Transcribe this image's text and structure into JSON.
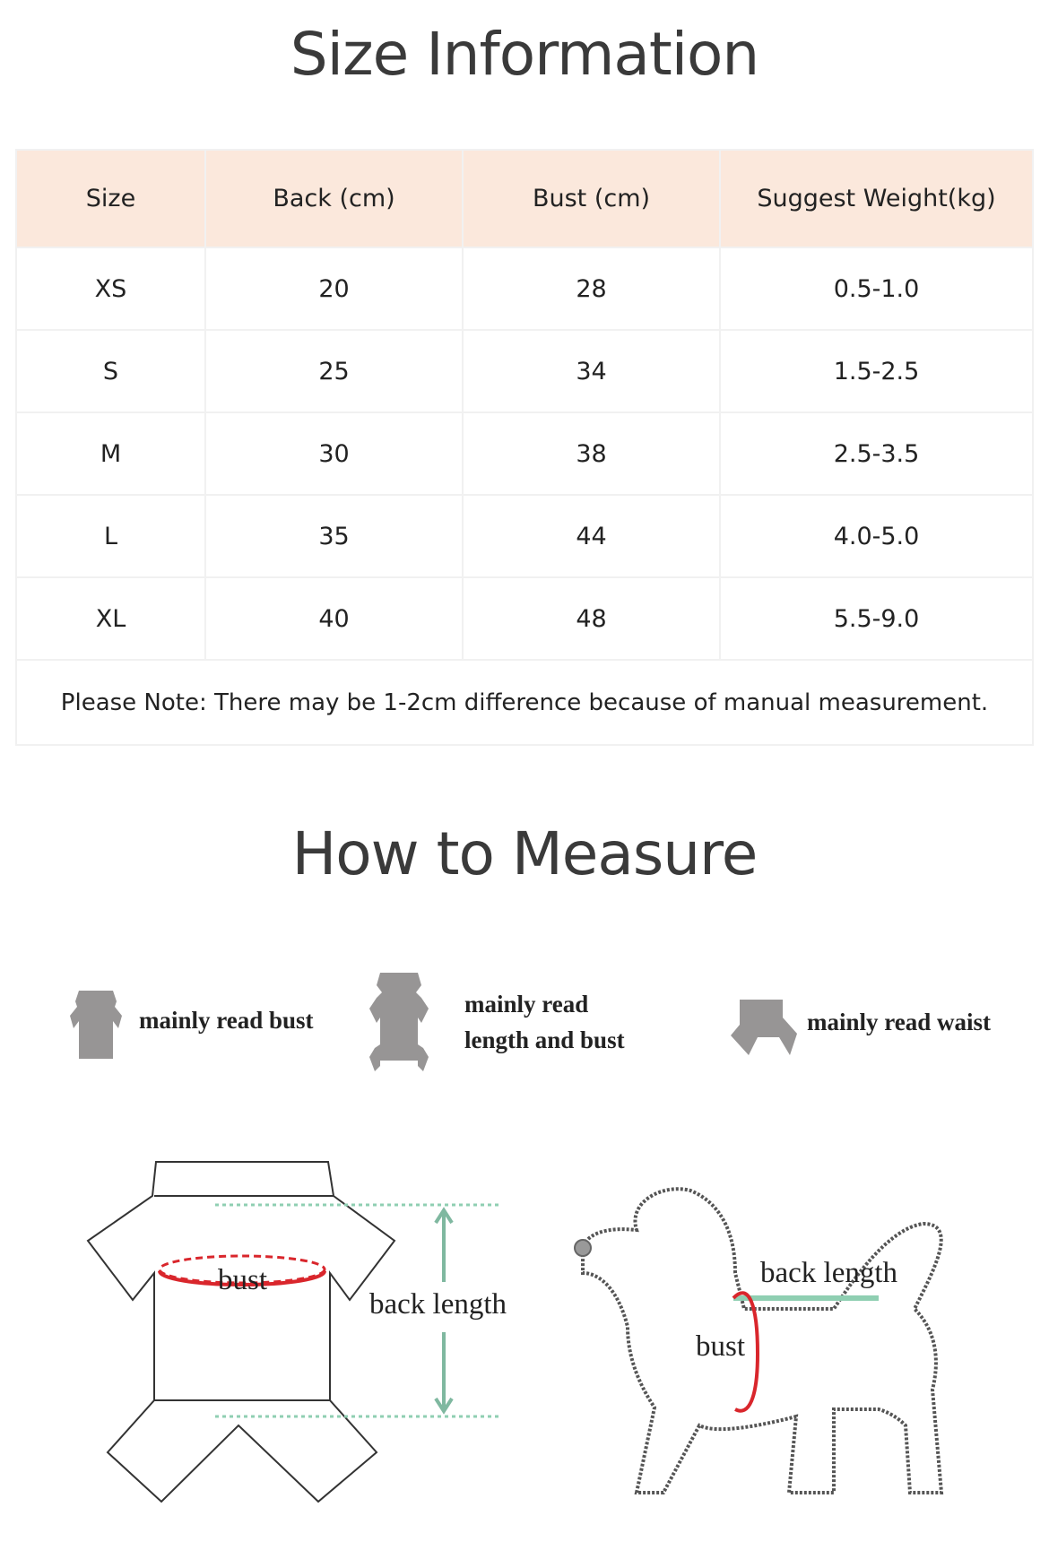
{
  "size_info": {
    "title": "Size Information",
    "headers": [
      "Size",
      "Back (cm)",
      "Bust (cm)",
      "Suggest Weight(kg)"
    ],
    "rows": [
      [
        "XS",
        "20",
        "28",
        "0.5-1.0"
      ],
      [
        "S",
        "25",
        "34",
        "1.5-2.5"
      ],
      [
        "M",
        "30",
        "38",
        "2.5-3.5"
      ],
      [
        "L",
        "35",
        "44",
        "4.0-5.0"
      ],
      [
        "XL",
        "40",
        "48",
        "5.5-9.0"
      ]
    ],
    "note": "Please Note: There may be 1-2cm difference because of manual measurement.",
    "header_color": "#fbe8dc"
  },
  "how_to_measure": {
    "title": "How to Measure",
    "legend": [
      {
        "icon": "short-shirt-icon",
        "label": "mainly read bust"
      },
      {
        "icon": "full-jumpsuit-icon",
        "label_line1": "mainly read",
        "label_line2": "length and bust"
      },
      {
        "icon": "pants-icon",
        "label": "mainly read waist"
      }
    ],
    "garment_diagram": {
      "bust_label": "bust",
      "length_label": "back length"
    },
    "dog_diagram": {
      "bust_label": "bust",
      "length_label": "back length"
    },
    "bust_color": "#d9262c",
    "length_color": "#8fcfb2"
  }
}
